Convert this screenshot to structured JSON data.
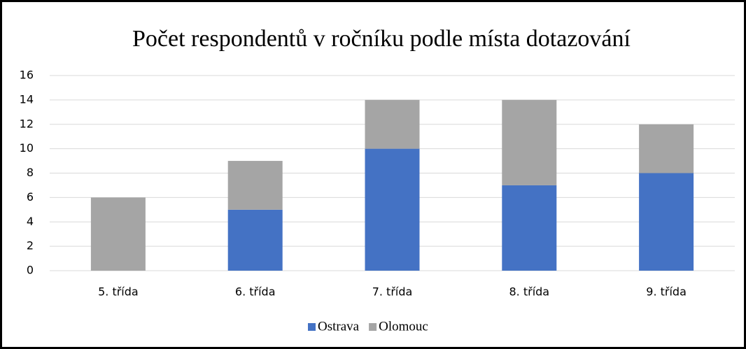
{
  "chart_data": {
    "type": "stacked_bar",
    "title": "Počet respondentů v ročníku podle místa dotazování",
    "categories": [
      "5. třída",
      "6. třída",
      "7. třída",
      "8. třída",
      "9. třída"
    ],
    "series": [
      {
        "name": "Ostrava",
        "color": "#4472c4",
        "values": [
          0,
          5,
          10,
          7,
          8
        ]
      },
      {
        "name": "Olomouc",
        "color": "#a5a5a5",
        "values": [
          6,
          4,
          4,
          7,
          4
        ]
      }
    ],
    "ylim": [
      0,
      16
    ],
    "yticks": [
      0,
      2,
      4,
      6,
      8,
      10,
      12,
      14,
      16
    ],
    "grid": true,
    "legend": "bottom"
  }
}
